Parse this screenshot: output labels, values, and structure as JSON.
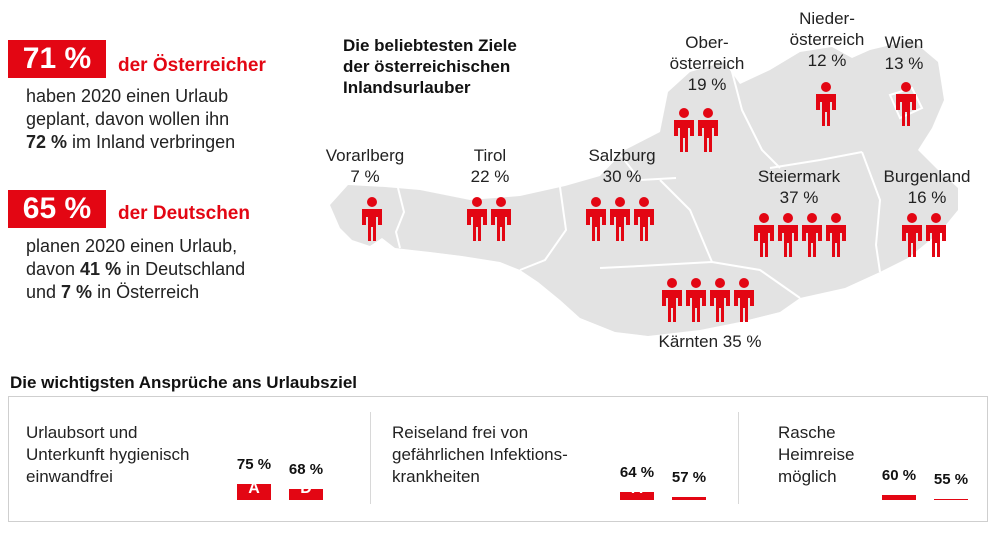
{
  "left": {
    "stat1": {
      "value": "71 %",
      "label": "der Österreicher",
      "text1": "haben 2020 einen Urlaub",
      "text2": "geplant, davon wollen ihn",
      "text3_bold": "72 %",
      "text3_rest": " im Inland verbringen"
    },
    "stat2": {
      "value": "65 %",
      "label": "der Deutschen",
      "text1": "planen 2020 einen Urlaub,",
      "text2_pre": "davon ",
      "text2_bold": "41 %",
      "text2_rest": " in Deutschland",
      "text3_pre": "und ",
      "text3_bold": "7 %",
      "text3_rest": " in Österreich"
    }
  },
  "map": {
    "title_lines": [
      "Die beliebtesten Ziele",
      "der österreichischen",
      "Inlandsurlauber"
    ],
    "colors": {
      "map": "#e3e3e3",
      "person": "#e30613",
      "border": "#ffffff"
    }
  },
  "chart_data": [
    {
      "type": "pictogram",
      "title": "Die beliebtesten Ziele der österreichischen Inlandsurlauber",
      "unit": "%",
      "regions": [
        {
          "name_lines": [
            "Vorarlberg"
          ],
          "value": 7,
          "value_label": "7 %",
          "icons": 1
        },
        {
          "name_lines": [
            "Tirol"
          ],
          "value": 22,
          "value_label": "22 %",
          "icons": 2
        },
        {
          "name_lines": [
            "Salzburg"
          ],
          "value": 30,
          "value_label": "30 %",
          "icons": 3
        },
        {
          "name_lines": [
            "Ober-",
            "österreich"
          ],
          "value": 19,
          "value_label": "19 %",
          "icons": 2
        },
        {
          "name_lines": [
            "Nieder-",
            "österreich"
          ],
          "value": 12,
          "value_label": "12 %",
          "icons": 1
        },
        {
          "name_lines": [
            "Wien"
          ],
          "value": 13,
          "value_label": "13 %",
          "icons": 1
        },
        {
          "name_lines": [
            "Steiermark"
          ],
          "value": 37,
          "value_label": "37 %",
          "icons": 4
        },
        {
          "name_lines": [
            "Burgenland"
          ],
          "value": 16,
          "value_label": "16 %",
          "icons": 2
        },
        {
          "name_lines": [
            "Kärnten 35 %"
          ],
          "value": 35,
          "value_label": "",
          "icons": 4
        }
      ]
    },
    {
      "type": "bar",
      "title": "Die wichtigsten Ansprüche ans Urlaubsziel",
      "series_labels": [
        "A",
        "D"
      ],
      "unit": "%",
      "groups": [
        {
          "label_lines": [
            "Urlaubsort und",
            "Unterkunft hygienisch",
            "einwandfrei"
          ],
          "values": [
            75,
            68
          ]
        },
        {
          "label_lines": [
            "Reiseland frei von",
            "gefährlichen Infektions-",
            "krankheiten"
          ],
          "values": [
            64,
            57
          ]
        },
        {
          "label_lines": [
            "Rasche",
            "Heimreise",
            "möglich"
          ],
          "values": [
            60,
            55
          ]
        }
      ],
      "colors": {
        "bar": "#e30613",
        "bar_label": "#ffffff"
      }
    }
  ]
}
